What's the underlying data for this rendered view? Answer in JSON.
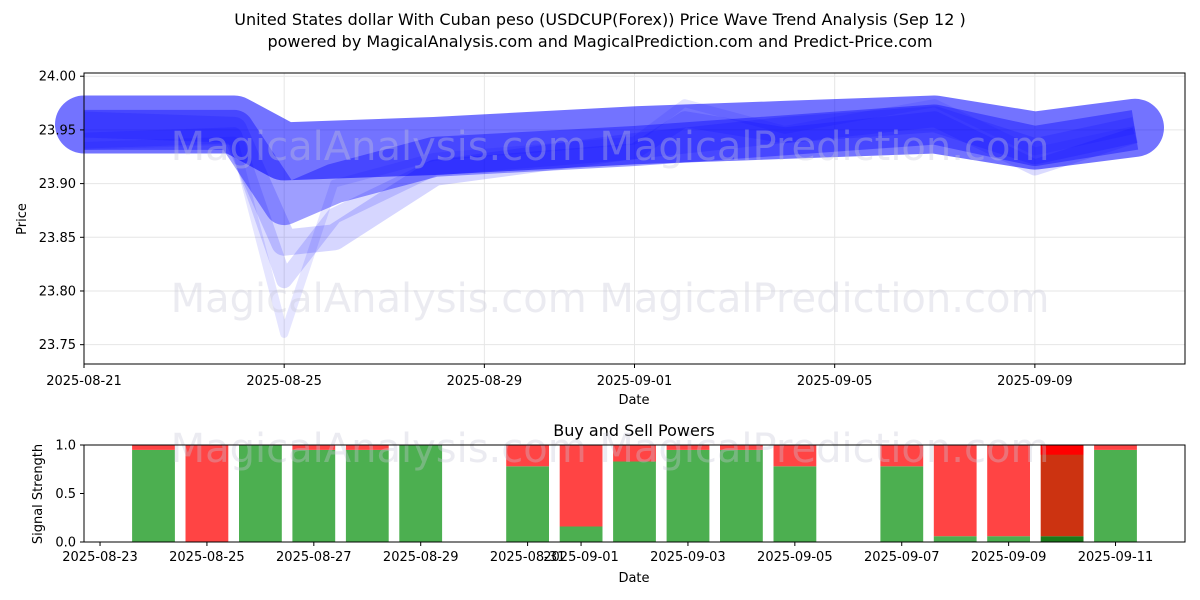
{
  "title_line1": "United States dollar With Cuban peso (USDCUP(Forex)) Price Wave Trend Analysis (Sep 12 )",
  "title_line2": "powered by MagicalAnalysis.com and MagicalPrediction.com and Predict-Price.com",
  "watermarks": {
    "top_upper": "MagicalAnalysis.com    MagicalPrediction.com",
    "top_lower": "MagicalAnalysis.com    MagicalPrediction.com",
    "bottom": "MagicalAnalysis.com    MagicalPrediction.com"
  },
  "colors": {
    "wave": "#0000ff",
    "buy": "#4caf50",
    "sell": "#ff4444",
    "sell_dark": "#cc3311",
    "buy_dark": "#1a7a1a",
    "grid": "#e6e6e6"
  },
  "chart_data": [
    {
      "type": "area",
      "title": "",
      "xlabel": "Date",
      "ylabel": "Price",
      "ylim": [
        23.732,
        24.003
      ],
      "x_range": [
        "2025-08-21",
        "2025-09-12"
      ],
      "x_ticks": [
        "2025-08-21",
        "2025-08-25",
        "2025-08-29",
        "2025-09-01",
        "2025-09-05",
        "2025-09-09"
      ],
      "y_ticks": [
        "23.75",
        "23.80",
        "23.85",
        "23.90",
        "23.95",
        "24.00"
      ],
      "grid": true,
      "series": [
        {
          "name": "wave_center",
          "x": [
            "2025-08-21",
            "2025-08-24",
            "2025-08-25",
            "2025-08-28",
            "2025-09-01",
            "2025-09-04",
            "2025-09-07",
            "2025-09-09",
            "2025-09-11"
          ],
          "values": [
            23.955,
            23.955,
            23.93,
            23.935,
            23.945,
            23.95,
            23.955,
            23.94,
            23.952
          ]
        },
        {
          "name": "wave_band_a",
          "x": [
            "2025-08-21",
            "2025-08-24",
            "2025-08-25",
            "2025-08-26",
            "2025-08-28",
            "2025-09-01",
            "2025-09-04",
            "2025-09-07",
            "2025-09-09",
            "2025-09-11"
          ],
          "values": [
            23.95,
            23.95,
            23.88,
            23.9,
            23.925,
            23.935,
            23.945,
            23.955,
            23.935,
            23.95
          ]
        },
        {
          "name": "wave_band_b",
          "x": [
            "2025-08-21",
            "2025-08-24",
            "2025-08-25",
            "2025-08-26",
            "2025-08-28",
            "2025-09-01",
            "2025-09-04",
            "2025-09-07",
            "2025-09-09",
            "2025-09-11"
          ],
          "values": [
            23.955,
            23.95,
            23.845,
            23.85,
            23.91,
            23.935,
            23.95,
            23.96,
            23.93,
            23.95
          ]
        },
        {
          "name": "wave_band_c",
          "x": [
            "2025-08-21",
            "2025-08-24",
            "2025-08-25",
            "2025-08-26",
            "2025-08-28",
            "2025-09-01",
            "2025-09-02",
            "2025-09-04",
            "2025-09-07",
            "2025-09-09",
            "2025-09-10",
            "2025-09-11"
          ],
          "values": [
            23.94,
            23.945,
            23.81,
            23.87,
            23.915,
            23.93,
            23.96,
            23.945,
            23.96,
            23.915,
            23.93,
            23.945
          ]
        },
        {
          "name": "wave_band_d",
          "x": [
            "2025-08-21",
            "2025-08-24",
            "2025-08-25",
            "2025-08-26",
            "2025-08-28",
            "2025-09-01",
            "2025-09-02",
            "2025-09-04",
            "2025-09-07",
            "2025-09-09",
            "2025-09-11"
          ],
          "values": [
            23.935,
            23.94,
            23.76,
            23.9,
            23.925,
            23.94,
            23.975,
            23.95,
            23.975,
            23.93,
            23.95
          ]
        }
      ]
    },
    {
      "type": "bar",
      "title": "Buy and Sell Powers",
      "xlabel": "Date",
      "ylabel": "Signal Strength",
      "ylim": [
        0,
        1.0
      ],
      "x_range": [
        "2025-08-22.7",
        "2025-09-12.3"
      ],
      "x_ticks": [
        "2025-08-23",
        "2025-08-25",
        "2025-08-27",
        "2025-08-29",
        "2025-08-31",
        "2025-09-01",
        "2025-09-03",
        "2025-09-05",
        "2025-09-07",
        "2025-09-09",
        "2025-09-11"
      ],
      "y_ticks": [
        "0.0",
        "0.5",
        "1.0"
      ],
      "series": [
        {
          "name": "buy",
          "categories": [
            "2025-08-24",
            "2025-08-25",
            "2025-08-26",
            "2025-08-27",
            "2025-08-28",
            "2025-08-29",
            "2025-08-31",
            "2025-09-01",
            "2025-09-02",
            "2025-09-03",
            "2025-09-04",
            "2025-09-05",
            "2025-09-07",
            "2025-09-08",
            "2025-09-09",
            "2025-09-10",
            "2025-09-11"
          ],
          "values": [
            0.95,
            0.0,
            1.0,
            0.95,
            0.95,
            1.0,
            0.78,
            0.16,
            0.83,
            0.95,
            0.95,
            0.78,
            0.78,
            0.06,
            0.06,
            0.06,
            0.95
          ]
        },
        {
          "name": "sell",
          "categories": [
            "2025-08-24",
            "2025-08-25",
            "2025-08-26",
            "2025-08-27",
            "2025-08-28",
            "2025-08-29",
            "2025-08-31",
            "2025-09-01",
            "2025-09-02",
            "2025-09-03",
            "2025-09-04",
            "2025-09-05",
            "2025-09-07",
            "2025-09-08",
            "2025-09-09",
            "2025-09-10",
            "2025-09-11"
          ],
          "values": [
            0.05,
            1.0,
            0.0,
            0.05,
            0.05,
            0.0,
            0.22,
            0.84,
            0.17,
            0.05,
            0.05,
            0.22,
            0.22,
            0.94,
            0.94,
            0.94,
            0.05
          ]
        }
      ]
    }
  ]
}
